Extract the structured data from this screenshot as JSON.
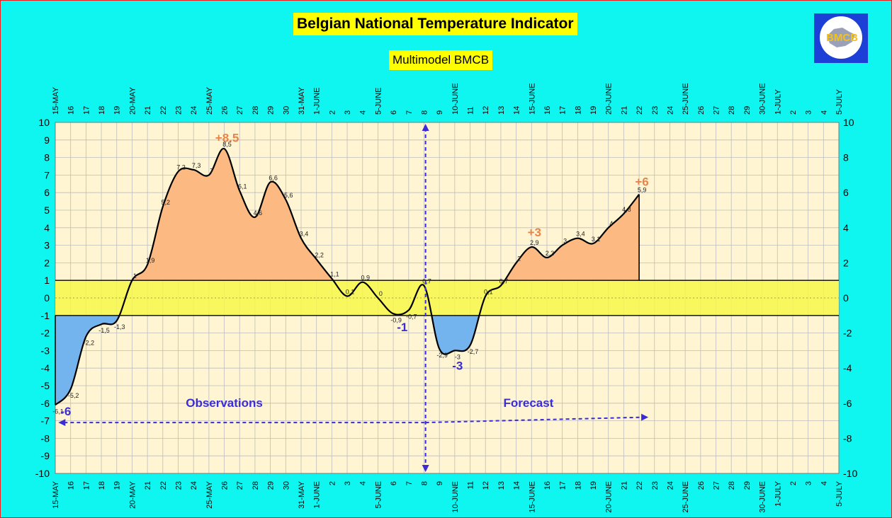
{
  "title": "Belgian National Temperature Indicator",
  "subtitle": "Multimodel BMCB",
  "logo": {
    "text": "BMCB",
    "icon": "bmcb-logo"
  },
  "colors": {
    "background": "#0ff5f0",
    "plot_background": "#fff5d2",
    "grid": "#bdbdbd",
    "band": "#f7f74a",
    "positive_fill": "#fcb982",
    "negative_fill": "#74b4ee",
    "curve": "#000000",
    "max_label": "#e8844a",
    "min_label": "#3b2cd6",
    "arrow": "#3b2cd6"
  },
  "chart_data": {
    "type": "area",
    "x_tick_labels": [
      "15-MAY",
      "16",
      "17",
      "18",
      "19",
      "20-MAY",
      "21",
      "22",
      "23",
      "24",
      "25-MAY",
      "26",
      "27",
      "28",
      "29",
      "30",
      "31-MAY",
      "1-JUNE",
      "2",
      "3",
      "4",
      "5-JUNE",
      "6",
      "7",
      "8",
      "9",
      "10-JUNE",
      "11",
      "12",
      "13",
      "14",
      "15-JUNE",
      "16",
      "17",
      "18",
      "19",
      "20-JUNE",
      "21",
      "22",
      "23",
      "24",
      "25-JUNE",
      "26",
      "27",
      "28",
      "29",
      "30-JUNE",
      "1-JULY",
      "2",
      "3",
      "4",
      "5-JULY"
    ],
    "y_left": {
      "min": -10,
      "max": 10,
      "ticks": [
        10,
        9,
        8,
        7,
        6,
        5,
        4,
        3,
        2,
        1,
        0,
        -1,
        -2,
        -3,
        -4,
        -5,
        -6,
        -7,
        -8,
        -9,
        -10
      ]
    },
    "y_right": {
      "min": -10,
      "max": 10,
      "ticks": [
        10,
        8,
        6,
        4,
        2,
        0,
        -2,
        -4,
        -6,
        -8,
        -10
      ]
    },
    "normal_band": [
      -1,
      1
    ],
    "series": [
      {
        "points": [
          {
            "d": 0,
            "y": -6.1,
            "label": "-6,1"
          },
          {
            "d": 1,
            "y": -5.2,
            "label": "-5,2"
          },
          {
            "d": 2,
            "y": -2.2,
            "label": "-2,2"
          },
          {
            "d": 3,
            "y": -1.5,
            "label": "-1,5"
          },
          {
            "d": 4,
            "y": -1.3,
            "label": "-1,3"
          },
          {
            "d": 5,
            "y": 1,
            "label": "1"
          },
          {
            "d": 6,
            "y": 1.9,
            "label": "1,9"
          },
          {
            "d": 7,
            "y": 5.2,
            "label": "5,2"
          },
          {
            "d": 8,
            "y": 7.2,
            "label": "7,2"
          },
          {
            "d": 9,
            "y": 7.3,
            "label": "7,3"
          },
          {
            "d": 10,
            "y": 7,
            "label": "7"
          },
          {
            "d": 11,
            "y": 8.5,
            "label": "8,5"
          },
          {
            "d": 12,
            "y": 6.1,
            "label": "6,1"
          },
          {
            "d": 13,
            "y": 4.6,
            "label": "4,6"
          },
          {
            "d": 14,
            "y": 6.6,
            "label": "6,6"
          },
          {
            "d": 15,
            "y": 5.6,
            "label": "5,6"
          },
          {
            "d": 16,
            "y": 3.4,
            "label": "3,4"
          },
          {
            "d": 17,
            "y": 2.2,
            "label": "2,2"
          },
          {
            "d": 18,
            "y": 1.1,
            "label": "1,1"
          },
          {
            "d": 19,
            "y": 0.1,
            "label": "0,1"
          },
          {
            "d": 20,
            "y": 0.9,
            "label": "0,9"
          },
          {
            "d": 21,
            "y": 0,
            "label": "0"
          },
          {
            "d": 22,
            "y": -0.9,
            "label": "-0,9"
          },
          {
            "d": 23,
            "y": -0.7,
            "label": "-0,7"
          },
          {
            "d": 24,
            "y": 0.7,
            "label": "0,7"
          },
          {
            "d": 25,
            "y": -2.9,
            "label": "-2,9"
          },
          {
            "d": 26,
            "y": -3,
            "label": "-3"
          },
          {
            "d": 27,
            "y": -2.7,
            "label": "-2,7"
          },
          {
            "d": 28,
            "y": 0.1,
            "label": "0,1"
          },
          {
            "d": 29,
            "y": 0.7,
            "label": "0,7"
          },
          {
            "d": 30,
            "y": 2,
            "label": "2"
          },
          {
            "d": 31,
            "y": 2.9,
            "label": "2,9"
          },
          {
            "d": 32,
            "y": 2.3,
            "label": "2,3"
          },
          {
            "d": 33,
            "y": 3,
            "label": "3"
          },
          {
            "d": 34,
            "y": 3.4,
            "label": "3,4"
          },
          {
            "d": 35,
            "y": 3.1,
            "label": "3,1"
          },
          {
            "d": 36,
            "y": 4,
            "label": "4"
          },
          {
            "d": 37,
            "y": 4.8,
            "label": "4,8"
          },
          {
            "d": 38,
            "y": 5.9,
            "label": "5,9"
          }
        ]
      }
    ],
    "annotations": [
      {
        "text": "+8.5",
        "d": 11,
        "y": 8.9,
        "kind": "max"
      },
      {
        "text": "+6",
        "d": 38,
        "y": 6.4,
        "kind": "max"
      },
      {
        "text": "+3",
        "d": 31,
        "y": 3.5,
        "kind": "max"
      },
      {
        "text": "-6",
        "d": 0.5,
        "y": -6.7,
        "kind": "min"
      },
      {
        "text": "-1",
        "d": 22.4,
        "y": -1.9,
        "kind": "min"
      },
      {
        "text": "-3",
        "d": 26,
        "y": -4.1,
        "kind": "min"
      }
    ],
    "section_labels": [
      {
        "text": "Observations",
        "d": 11,
        "y": -6.2
      },
      {
        "text": "Forecast",
        "d": 30.8,
        "y": -6.2
      }
    ],
    "today_marker": {
      "d": 24.1
    },
    "observations_arrow": {
      "from_d": 0.2,
      "to_d": 24.1,
      "y": -7.1
    },
    "forecast_arrow": {
      "from_d": 24.1,
      "to_d": 38.6,
      "y": -6.8
    }
  }
}
